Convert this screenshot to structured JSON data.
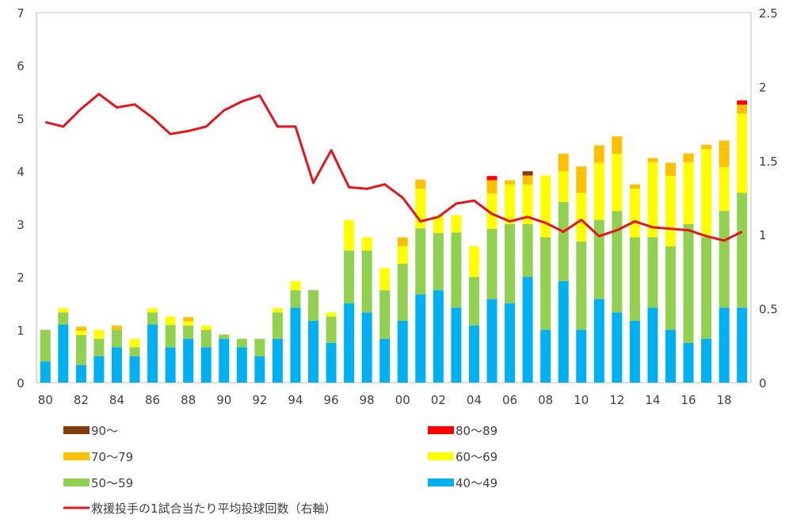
{
  "chart_data": {
    "type": "bar",
    "stacked": true,
    "categories": [
      "80",
      "81",
      "82",
      "83",
      "84",
      "85",
      "86",
      "87",
      "88",
      "89",
      "90",
      "91",
      "92",
      "93",
      "94",
      "95",
      "96",
      "97",
      "98",
      "99",
      "00",
      "01",
      "02",
      "03",
      "04",
      "05",
      "06",
      "07",
      "08",
      "09",
      "10",
      "11",
      "12",
      "13",
      "14",
      "15",
      "16",
      "17",
      "18",
      "19"
    ],
    "x_tick_labels": [
      "80",
      "82",
      "84",
      "86",
      "88",
      "90",
      "92",
      "94",
      "96",
      "98",
      "00",
      "02",
      "04",
      "06",
      "08",
      "10",
      "12",
      "14",
      "16",
      "18"
    ],
    "left_axis": {
      "ylim": [
        0,
        7
      ],
      "ticks": [
        "0",
        "1",
        "2",
        "3",
        "4",
        "5",
        "6",
        "7"
      ]
    },
    "right_axis": {
      "ylim": [
        0,
        2.5
      ],
      "ticks": [
        "0",
        "0.5",
        "1",
        "1.5",
        "2",
        "2.5"
      ]
    },
    "series": [
      {
        "name": "40〜49",
        "color": "#00b0f0",
        "axis": "left",
        "values": [
          0.4,
          1.1,
          0.33,
          0.5,
          0.67,
          0.5,
          1.1,
          0.67,
          0.83,
          0.67,
          0.83,
          0.67,
          0.5,
          0.83,
          1.42,
          1.17,
          0.75,
          1.5,
          1.33,
          0.83,
          1.17,
          1.67,
          1.75,
          1.42,
          1.08,
          1.58,
          1.5,
          2.0,
          1.0,
          1.92,
          1.0,
          1.58,
          1.33,
          1.17,
          1.42,
          1.0,
          0.75,
          0.83,
          1.42,
          1.42
        ]
      },
      {
        "name": "50〜59",
        "color": "#92d050",
        "axis": "left",
        "values": [
          0.6,
          0.23,
          0.57,
          0.33,
          0.33,
          0.17,
          0.23,
          0.42,
          0.25,
          0.33,
          0.08,
          0.16,
          0.33,
          0.5,
          0.33,
          0.58,
          0.5,
          1.0,
          1.17,
          0.92,
          1.08,
          1.25,
          1.08,
          1.42,
          0.92,
          1.33,
          1.5,
          1.0,
          1.75,
          1.5,
          1.67,
          1.5,
          1.92,
          1.58,
          1.33,
          1.58,
          2.25,
          1.92,
          1.83,
          2.17
        ]
      },
      {
        "name": "60〜69",
        "color": "#ffff00",
        "axis": "left",
        "values": [
          0,
          0.08,
          0.08,
          0.17,
          0,
          0.16,
          0.08,
          0.16,
          0.08,
          0.08,
          0,
          0,
          0,
          0.08,
          0.17,
          0,
          0.08,
          0.58,
          0.25,
          0.42,
          0.33,
          0.75,
          0.33,
          0.33,
          0.58,
          0.67,
          0.75,
          0.75,
          1.17,
          0.58,
          0.92,
          1.08,
          1.08,
          0.92,
          1.42,
          1.33,
          1.17,
          1.67,
          0.83,
          1.5
        ]
      },
      {
        "name": "70〜79",
        "color": "#ffc000",
        "axis": "left",
        "values": [
          0,
          0,
          0.08,
          0,
          0.08,
          0,
          0,
          0,
          0.08,
          0,
          0,
          0,
          0,
          0,
          0,
          0,
          0,
          0,
          0,
          0,
          0.17,
          0.17,
          0,
          0,
          0,
          0.25,
          0.08,
          0.17,
          0,
          0.33,
          0.5,
          0.33,
          0.33,
          0.08,
          0.08,
          0.25,
          0.17,
          0.08,
          0.5,
          0.17
        ]
      },
      {
        "name": "80〜89",
        "color": "#ff0000",
        "axis": "left",
        "values": [
          0,
          0,
          0,
          0,
          0,
          0,
          0,
          0,
          0,
          0,
          0,
          0,
          0,
          0,
          0,
          0,
          0,
          0,
          0,
          0,
          0,
          0,
          0,
          0,
          0,
          0.08,
          0,
          0,
          0,
          0,
          0,
          0,
          0,
          0,
          0,
          0,
          0,
          0,
          0,
          0.08
        ]
      },
      {
        "name": "90〜",
        "color": "#843c0c",
        "axis": "left",
        "values": [
          0,
          0,
          0,
          0,
          0,
          0,
          0,
          0,
          0,
          0,
          0,
          0,
          0,
          0,
          0,
          0,
          0,
          0,
          0,
          0,
          0,
          0,
          0,
          0,
          0,
          0,
          0,
          0.08,
          0,
          0,
          0,
          0,
          0,
          0,
          0,
          0,
          0,
          0,
          0,
          0
        ]
      },
      {
        "name": "救援投手の1試合当たり平均投球回数（右軸）",
        "type": "line",
        "color": "#e8141c",
        "axis": "right",
        "values": [
          1.76,
          1.73,
          1.85,
          1.95,
          1.86,
          1.88,
          1.79,
          1.68,
          1.7,
          1.73,
          1.84,
          1.9,
          1.94,
          1.73,
          1.73,
          1.35,
          1.57,
          1.32,
          1.31,
          1.34,
          1.25,
          1.09,
          1.12,
          1.21,
          1.23,
          1.14,
          1.09,
          1.12,
          1.08,
          1.02,
          1.1,
          0.99,
          1.03,
          1.09,
          1.05,
          1.04,
          1.03,
          0.99,
          0.96,
          1.02
        ]
      }
    ],
    "legend": {
      "placement": "bottom",
      "entries": [
        "90〜",
        "80〜89",
        "70〜79",
        "60〜69",
        "50〜59",
        "40〜49",
        "救援投手の1試合当たり平均投球回数（右軸）"
      ]
    }
  }
}
